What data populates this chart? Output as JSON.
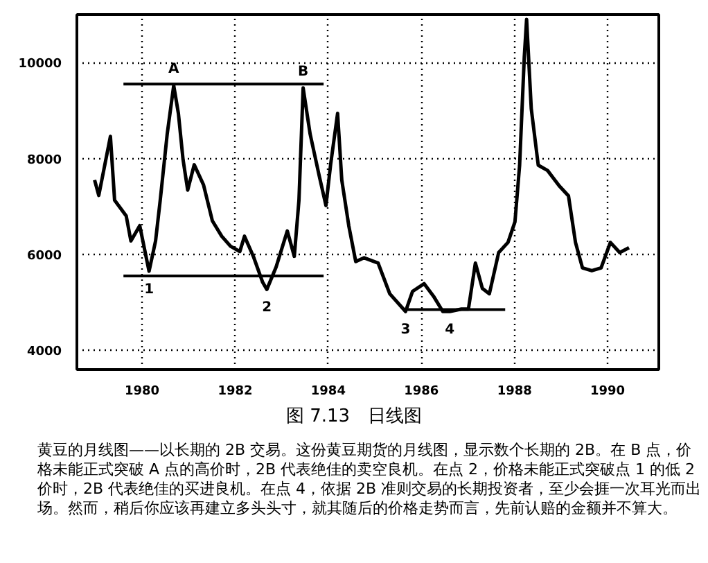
{
  "chart_data": {
    "type": "line",
    "title": "图 7.13　日线图",
    "x": [
      1978.98,
      1979.07,
      1979.32,
      1979.41,
      1979.66,
      1979.76,
      1979.95,
      1980.15,
      1980.29,
      1980.39,
      1980.54,
      1980.68,
      1980.78,
      1980.88,
      1980.98,
      1981.12,
      1981.32,
      1981.51,
      1981.71,
      1981.9,
      1982.1,
      1982.2,
      1982.39,
      1982.59,
      1982.68,
      1982.88,
      1983.12,
      1983.27,
      1983.37,
      1983.46,
      1983.61,
      1983.8,
      1983.95,
      1984.05,
      1984.2,
      1984.29,
      1984.44,
      1984.59,
      1984.77,
      1985.07,
      1985.32,
      1985.66,
      1985.81,
      1986.06,
      1986.26,
      1986.46,
      1986.61,
      1986.86,
      1987.01,
      1987.16,
      1987.31,
      1987.46,
      1987.66,
      1987.86,
      1988.01,
      1988.11,
      1988.21,
      1988.26,
      1988.36,
      1988.51,
      1988.71,
      1988.96,
      1989.16,
      1989.31,
      1989.46,
      1989.66,
      1989.86,
      1990.06,
      1990.26,
      1990.46
    ],
    "series": [
      {
        "color": "#000000",
        "values": [
          7550,
          7230,
          8460,
          7130,
          6800,
          6280,
          6600,
          5650,
          6280,
          7130,
          8510,
          9520,
          8940,
          7980,
          7340,
          7870,
          7450,
          6700,
          6380,
          6170,
          6060,
          6380,
          5960,
          5420,
          5270,
          5740,
          6490,
          5960,
          7130,
          9470,
          8510,
          7660,
          7020,
          7870,
          8940,
          7550,
          6600,
          5850,
          5930,
          5820,
          5180,
          4810,
          5230,
          5390,
          5130,
          4810,
          4810,
          4860,
          4860,
          5820,
          5290,
          5180,
          6040,
          6250,
          6680,
          7860,
          10110,
          10900,
          9040,
          7860,
          7750,
          7430,
          7220,
          6250,
          5720,
          5660,
          5720,
          6250,
          6040,
          6140
        ]
      },
      {
        "color": "#000000",
        "x": [
          1979.6,
          1983.9
        ],
        "values": [
          9550,
          9550
        ]
      },
      {
        "color": "#000000",
        "x": [
          1979.6,
          1983.9
        ],
        "values": [
          5550,
          5550
        ]
      },
      {
        "color": "#000000",
        "x": [
          1985.7,
          1987.8
        ],
        "values": [
          4850,
          4850
        ]
      }
    ],
    "xlim": [
      1978.6,
      1991.1
    ],
    "ylim": [
      3600,
      11000
    ],
    "xticks": [
      1980,
      1982,
      1984,
      1986,
      1988,
      1990
    ],
    "yticks": [
      4000,
      6000,
      8000,
      10000
    ],
    "grid": true,
    "annotations": [
      {
        "text": "A",
        "x": 1980.68,
        "y": 9520
      },
      {
        "text": "B",
        "x": 1983.46,
        "y": 9470
      },
      {
        "text": "1",
        "x": 1980.15,
        "y": 5650
      },
      {
        "text": "2",
        "x": 1982.68,
        "y": 5270
      },
      {
        "text": "3",
        "x": 1985.66,
        "y": 4810
      },
      {
        "text": "4",
        "x": 1986.61,
        "y": 4810
      },
      "黄豆的月线图——以长期的 2B 交易。这份黄豆期货的月线图，显示数个长期的 2B。在 B 点，价格未能正式突破 A 点的高价时，2B 代表绝佳的卖空良机。在点 2，价格未能正式突破点 1 的低 2 价时，2B 代表绝佳的买进良机。在点 4，依据 2B 准则交易的长期投资者，至少会捱一次耳光而出场。然而，稍后你应该再建立多头头寸，就其随后的价格走势而言，先前认赔的金额并不算大。"
    ]
  }
}
